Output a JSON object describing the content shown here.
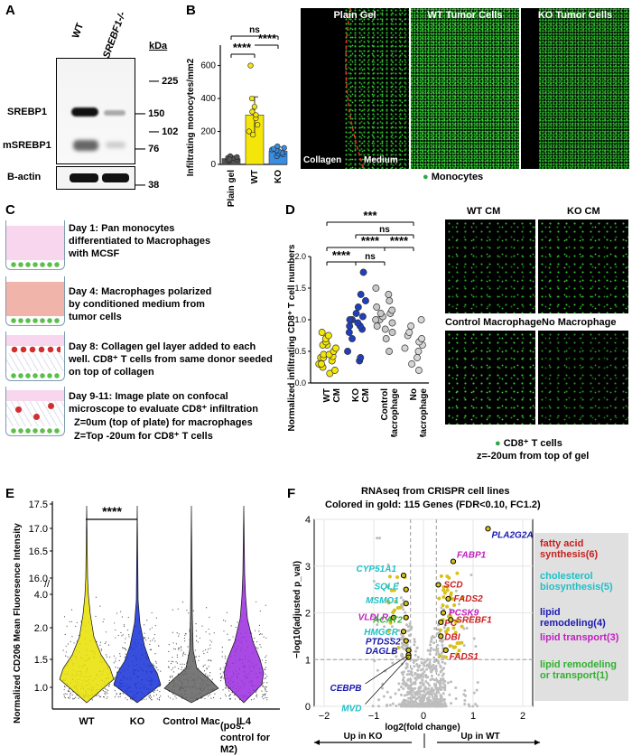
{
  "panels": {
    "A": {
      "label": "A",
      "lanes": [
        "WT",
        "SREBF1-/-"
      ],
      "kda_title": "kDa",
      "markers": [
        "225",
        "150",
        "102",
        "76",
        "38"
      ],
      "bands": [
        "SREBP1",
        "mSREBP1",
        "B-actin"
      ]
    },
    "B": {
      "label": "B",
      "ylabel": "Infiltrating monocytes/mm2",
      "categories": [
        "Plain gel",
        "WT",
        "KO"
      ],
      "sig": [
        "ns",
        "****",
        "****"
      ],
      "images": [
        "Plain Gel",
        "WT Tumor Cells",
        "KO Tumor Cells"
      ],
      "collagen": "Collagen",
      "medium": "Medium",
      "legend": "Monocytes"
    },
    "C": {
      "label": "C",
      "steps": [
        "Day 1: Pan monocytes differentiated to Macrophages with MCSF",
        "Day 4: Macrophages polarized by conditioned medium from tumor cells",
        "Day 8: Collagen gel layer added to each well. CD8⁺ T cells from same donor seeded on top of collagen",
        "Day 9-11: Image plate on confocal microscope to evaluate CD8⁺ infiltration",
        "Z=0um (top of plate) for macrophages",
        "Z=Top -20um for CD8⁺ T cells"
      ]
    },
    "D": {
      "label": "D",
      "ylabel": "Normalized infiltrating CD8⁺ T cell numbers",
      "categories": [
        "WT CM",
        "KO CM",
        "Control Macrophage",
        "No Macrophage"
      ],
      "sig": [
        "***",
        "ns",
        "****",
        "****",
        "****",
        "ns"
      ],
      "images": [
        "WT CM",
        "KO CM",
        "Control Macrophage",
        "No Macrophage"
      ],
      "legend": "CD8⁺ T cells",
      "legend_sub": "z=-20um from top of gel"
    },
    "E": {
      "label": "E",
      "ylabel": "Normalized CD206 Mean Fluoresence Intensity",
      "categories": [
        "WT",
        "KO",
        "Control Mac",
        "IL4"
      ],
      "il4_note": "(pos. control for M2)",
      "sig": "****"
    },
    "F": {
      "label": "F",
      "title": "RNAseq from CRISPR cell lines",
      "subtitle": "Colored in gold: 115 Genes (FDR<0.10, FC1.2)",
      "ylabel": "−log10(adjusted p_val)",
      "xlabel": "log2(fold change)",
      "up_ko": "Up in KO",
      "up_wt": "Up in WT",
      "genes": [
        "PLA2G2A",
        "FABP1",
        "CYP51A1",
        "SQLE",
        "SCD",
        "FADS2",
        "MSMO1",
        "PCSK9",
        "VLDLR",
        "ACAT2",
        "PC",
        "SREBF1",
        "HMGCR",
        "DBI",
        "PTDSS2",
        "DAGLB",
        "FADS1",
        "CEBPB",
        "MVD"
      ],
      "legend": [
        "fatty acid synthesis(6)",
        "cholesterol biosynthesis(5)",
        "lipid remodeling(4)",
        "lipid transport(3)",
        "lipid remodeling or transport(1)"
      ]
    }
  },
  "chart_data": [
    {
      "type": "bar",
      "panel": "B",
      "categories": [
        "Plain gel",
        "WT",
        "KO"
      ],
      "values": [
        35,
        300,
        80
      ],
      "errors": [
        10,
        110,
        25
      ],
      "points": [
        [
          20,
          25,
          30,
          35,
          38,
          40,
          45,
          50,
          30
        ],
        [
          180,
          200,
          240,
          280,
          300,
          320,
          350,
          400,
          600
        ],
        [
          50,
          60,
          65,
          70,
          80,
          85,
          90,
          95,
          100,
          110
        ]
      ],
      "colors": [
        "#555555",
        "#f5e60a",
        "#3a8de0"
      ],
      "yticks": [
        0,
        200,
        400,
        600
      ],
      "ylim": [
        0,
        680
      ]
    },
    {
      "type": "scatter",
      "panel": "D",
      "categories": [
        "WT CM",
        "KO CM",
        "Control Macrophage",
        "No Macrophage"
      ],
      "points": [
        [
          0.15,
          0.2,
          0.25,
          0.3,
          0.3,
          0.35,
          0.4,
          0.4,
          0.42,
          0.45,
          0.45,
          0.5,
          0.55,
          0.6,
          0.6,
          0.65,
          0.7,
          0.75,
          0.8
        ],
        [
          0.35,
          0.4,
          0.5,
          0.7,
          0.8,
          0.85,
          0.9,
          0.9,
          0.95,
          1.0,
          1.0,
          1.05,
          1.1,
          1.2,
          1.3,
          1.4,
          1.75
        ],
        [
          0.5,
          0.7,
          0.8,
          0.85,
          0.9,
          0.95,
          1.0,
          1.0,
          1.05,
          1.1,
          1.1,
          1.15,
          1.2,
          1.3,
          1.4,
          1.5
        ],
        [
          0.2,
          0.3,
          0.4,
          0.5,
          0.55,
          0.6,
          0.65,
          0.7,
          0.75,
          0.8,
          0.9,
          1.0
        ]
      ],
      "colors": [
        "#f5e60a",
        "#1f3fbf",
        "#c8c8c8",
        "#d6d6d6"
      ],
      "yticks": [
        0.0,
        0.5,
        1.0,
        1.5,
        2.0
      ],
      "ylim": [
        0,
        2.0
      ]
    },
    {
      "type": "violin",
      "panel": "E",
      "categories": [
        "WT",
        "KO",
        "Control Mac",
        "IL4"
      ],
      "colors": [
        "#e8e000",
        "#1530d8",
        "#606060",
        "#9a2ae0"
      ],
      "yticks_low": [
        1.0,
        1.5,
        2.0,
        4.0
      ],
      "yticks_high": [
        16.0,
        16.5,
        17.0,
        17.5
      ]
    },
    {
      "type": "scatter",
      "panel": "F",
      "xticks": [
        -2,
        -1,
        0,
        1,
        2
      ],
      "yticks": [
        0,
        1,
        2,
        3,
        4
      ],
      "xlim": [
        -2.2,
        2.2
      ],
      "ylim": [
        0,
        4
      ],
      "thresholds": {
        "y": 1.0,
        "x": [
          -0.26,
          0.26
        ]
      },
      "labeled_genes": [
        {
          "gene": "PLA2G2A",
          "x": 1.3,
          "y": 3.8
        },
        {
          "gene": "FABP1",
          "x": 0.6,
          "y": 3.1
        },
        {
          "gene": "CYP51A1",
          "x": -0.4,
          "y": 2.8
        },
        {
          "gene": "SQLE",
          "x": -0.35,
          "y": 2.5
        },
        {
          "gene": "SCD",
          "x": 0.3,
          "y": 2.6
        },
        {
          "gene": "FADS2",
          "x": 0.5,
          "y": 2.3
        },
        {
          "gene": "MSMO1",
          "x": -0.35,
          "y": 2.2
        },
        {
          "gene": "PCSK9",
          "x": 0.4,
          "y": 2.0
        },
        {
          "gene": "VLDLR",
          "x": -0.6,
          "y": 1.9
        },
        {
          "gene": "ACAT2",
          "x": -0.35,
          "y": 1.9
        },
        {
          "gene": "PC",
          "x": 0.35,
          "y": 1.8
        },
        {
          "gene": "SREBF1",
          "x": 0.55,
          "y": 1.85
        },
        {
          "gene": "HMGCR",
          "x": -0.4,
          "y": 1.6
        },
        {
          "gene": "DBI",
          "x": 0.35,
          "y": 1.5
        },
        {
          "gene": "PTDSS2",
          "x": -0.35,
          "y": 1.4
        },
        {
          "gene": "DAGLB",
          "x": -0.3,
          "y": 1.2
        },
        {
          "gene": "FADS1",
          "x": 0.45,
          "y": 1.2
        },
        {
          "gene": "CEBPB",
          "x": -0.3,
          "y": 1.1
        },
        {
          "gene": "MVD",
          "x": -0.3,
          "y": 1.05
        }
      ]
    }
  ]
}
